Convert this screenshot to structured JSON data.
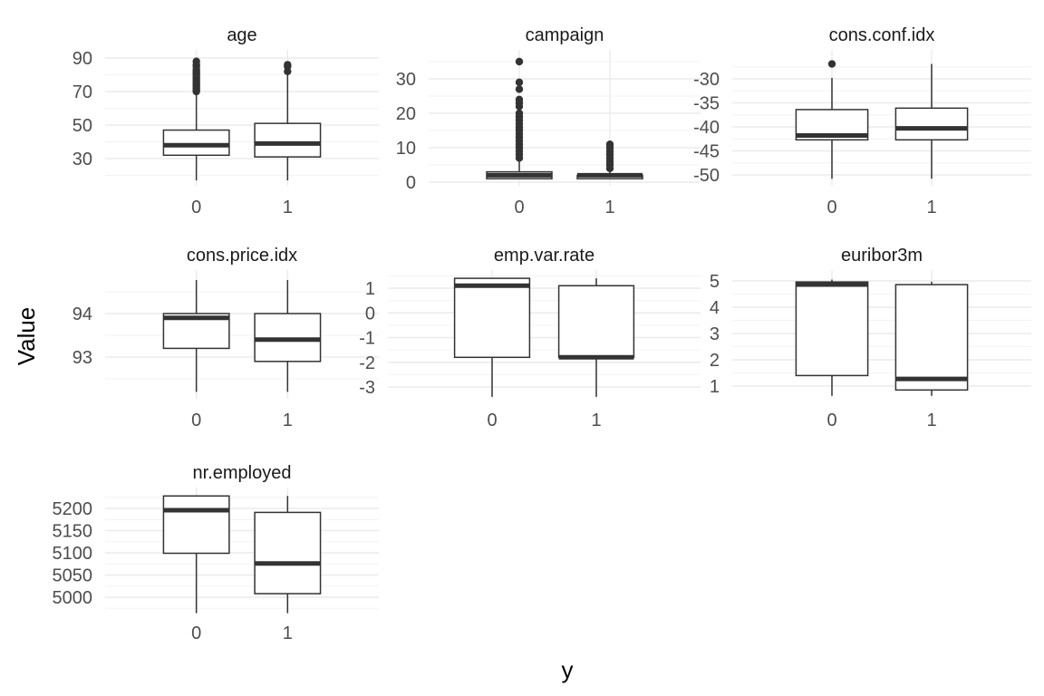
{
  "chart_data": {
    "type": "boxplot",
    "xlabel": "y",
    "ylabel": "Value",
    "categories": [
      "0",
      "1"
    ],
    "grid": true,
    "panels": [
      {
        "title": "age",
        "ylim": [
          17,
          96
        ],
        "yticks": [
          30,
          50,
          70,
          90
        ],
        "boxes": [
          {
            "category": "0",
            "whisker_low": 17,
            "q1": 32,
            "median": 38,
            "q3": 47,
            "whisker_high": 69,
            "outliers": [
              70,
              71,
              72,
              73,
              74,
              75,
              76,
              77,
              78,
              79,
              80,
              81,
              82,
              83,
              85,
              86,
              88
            ]
          },
          {
            "category": "1",
            "whisker_low": 17,
            "q1": 31,
            "median": 39,
            "q3": 51,
            "whisker_high": 80,
            "outliers": [
              82,
              85,
              86
            ]
          }
        ]
      },
      {
        "title": "campaign",
        "ylim": [
          0,
          35
        ],
        "yticks": [
          0,
          10,
          20,
          30
        ],
        "boxes": [
          {
            "category": "0",
            "whisker_low": 1,
            "q1": 1,
            "median": 2,
            "q3": 3,
            "whisker_high": 6,
            "outliers": [
              7,
              8,
              9,
              10,
              11,
              12,
              13,
              14,
              15,
              16,
              17,
              18,
              19,
              20,
              22,
              23,
              24,
              27,
              29,
              35
            ]
          },
          {
            "category": "1",
            "whisker_low": 1,
            "q1": 1,
            "median": 2,
            "q3": 2,
            "whisker_high": 3,
            "outliers": [
              4,
              5,
              6,
              7,
              8,
              9,
              10,
              11
            ]
          }
        ]
      },
      {
        "title": "cons.conf.idx",
        "ylim": [
          -51,
          -26.5
        ],
        "yticks": [
          -50,
          -45,
          -40,
          -35,
          -30
        ],
        "boxes": [
          {
            "category": "0",
            "whisker_low": -50.8,
            "q1": -42.7,
            "median": -41.8,
            "q3": -36.4,
            "whisker_high": -29.8,
            "outliers": [
              -26.9
            ]
          },
          {
            "category": "1",
            "whisker_low": -50.8,
            "q1": -42.7,
            "median": -40.3,
            "q3": -36.1,
            "whisker_high": -26.9,
            "outliers": []
          }
        ]
      },
      {
        "title": "cons.price.idx",
        "ylim": [
          92.2,
          94.8
        ],
        "yticks": [
          93,
          94
        ],
        "boxes": [
          {
            "category": "0",
            "whisker_low": 92.2,
            "q1": 93.2,
            "median": 93.9,
            "q3": 94.0,
            "whisker_high": 94.77,
            "outliers": []
          },
          {
            "category": "1",
            "whisker_low": 92.2,
            "q1": 92.9,
            "median": 93.4,
            "q3": 94.0,
            "whisker_high": 94.77,
            "outliers": []
          }
        ]
      },
      {
        "title": "emp.var.rate",
        "ylim": [
          -3.4,
          1.4
        ],
        "yticks": [
          -3,
          -2,
          -1,
          0,
          1
        ],
        "boxes": [
          {
            "category": "0",
            "whisker_low": -3.4,
            "q1": -1.8,
            "median": 1.1,
            "q3": 1.4,
            "whisker_high": 1.4,
            "outliers": []
          },
          {
            "category": "1",
            "whisker_low": -3.4,
            "q1": -1.8,
            "median": -1.8,
            "q3": 1.1,
            "whisker_high": 1.4,
            "outliers": []
          }
        ]
      },
      {
        "title": "euribor3m",
        "ylim": [
          0.63,
          5.05
        ],
        "yticks": [
          1,
          2,
          3,
          4,
          5
        ],
        "boxes": [
          {
            "category": "0",
            "whisker_low": 0.63,
            "q1": 1.4,
            "median": 4.86,
            "q3": 4.96,
            "whisker_high": 5.05,
            "outliers": []
          },
          {
            "category": "1",
            "whisker_low": 0.63,
            "q1": 0.85,
            "median": 1.27,
            "q3": 4.86,
            "whisker_high": 4.97,
            "outliers": []
          }
        ]
      },
      {
        "title": "nr.employed",
        "ylim": [
          4964,
          5228
        ],
        "yticks": [
          5000,
          5050,
          5100,
          5150,
          5200
        ],
        "boxes": [
          {
            "category": "0",
            "whisker_low": 4964,
            "q1": 5099,
            "median": 5196,
            "q3": 5228,
            "whisker_high": 5228,
            "outliers": []
          },
          {
            "category": "1",
            "whisker_low": 4964,
            "q1": 5008,
            "median": 5076,
            "q3": 5191,
            "whisker_high": 5228,
            "outliers": []
          }
        ]
      }
    ]
  }
}
